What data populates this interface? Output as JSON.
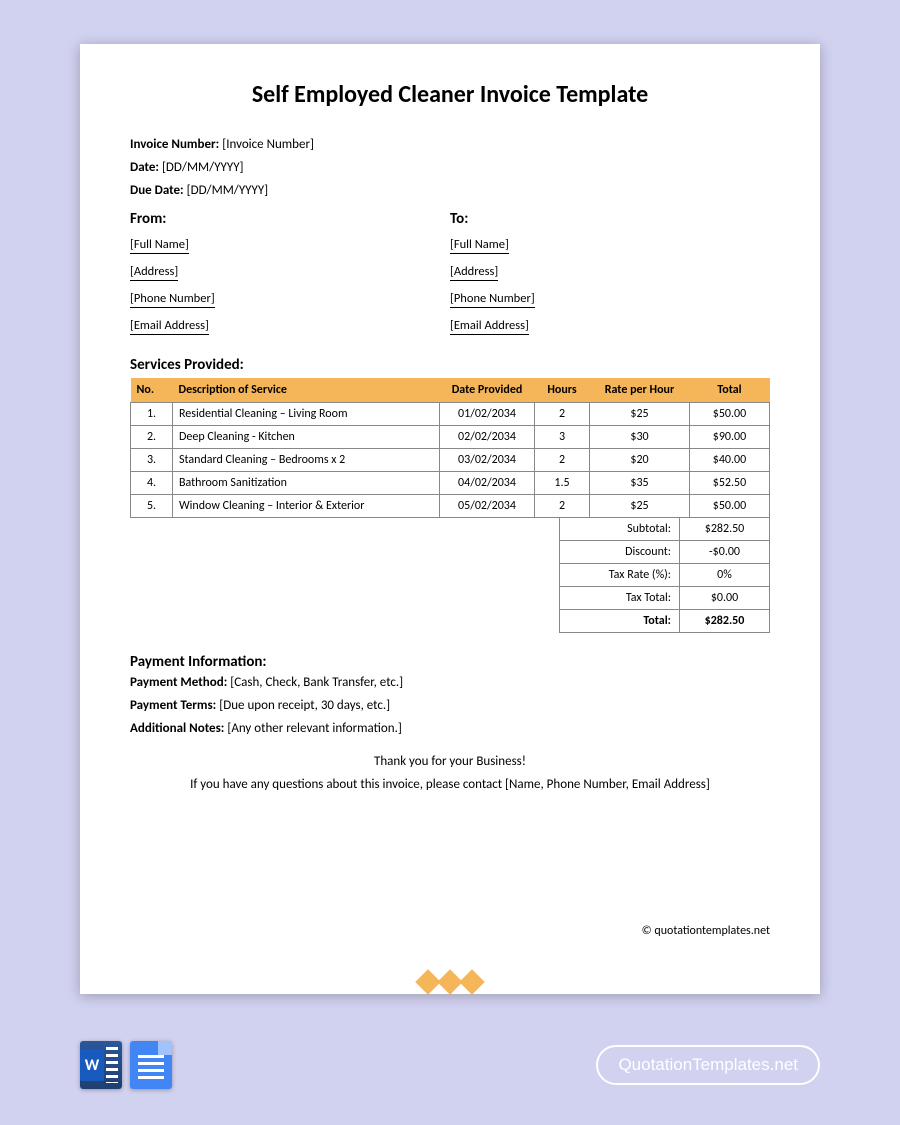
{
  "title": "Self Employed Cleaner Invoice Template",
  "meta": {
    "invoiceNumberLabel": "Invoice Number:",
    "invoiceNumberValue": "[Invoice Number]",
    "dateLabel": "Date:",
    "dateValue": "[DD/MM/YYYY]",
    "dueDateLabel": "Due Date:",
    "dueDateValue": "[DD/MM/YYYY]"
  },
  "from": {
    "heading": "From:",
    "name": "[Full Name]",
    "address": "[Address]",
    "phone": "[Phone Number]",
    "email": "[Email Address]"
  },
  "to": {
    "heading": "To:",
    "name": "[Full Name]",
    "address": "[Address]",
    "phone": "[Phone Number]",
    "email": "[Email Address]"
  },
  "servicesHeading": "Services Provided:",
  "columns": {
    "no": "No.",
    "desc": "Description of Service",
    "date": "Date Provided",
    "hours": "Hours",
    "rate": "Rate per Hour",
    "total": "Total"
  },
  "rows": [
    {
      "no": "1.",
      "desc": "Residential Cleaning – Living Room",
      "date": "01/02/2034",
      "hours": "2",
      "rate": "$25",
      "total": "$50.00"
    },
    {
      "no": "2.",
      "desc": "Deep Cleaning - Kitchen",
      "date": "02/02/2034",
      "hours": "3",
      "rate": "$30",
      "total": "$90.00"
    },
    {
      "no": "3.",
      "desc": "Standard Cleaning – Bedrooms x 2",
      "date": "03/02/2034",
      "hours": "2",
      "rate": "$20",
      "total": "$40.00"
    },
    {
      "no": "4.",
      "desc": "Bathroom Sanitization",
      "date": "04/02/2034",
      "hours": "1.5",
      "rate": "$35",
      "total": "$52.50"
    },
    {
      "no": "5.",
      "desc": "Window Cleaning – Interior & Exterior",
      "date": "05/02/2034",
      "hours": "2",
      "rate": "$25",
      "total": "$50.00"
    }
  ],
  "totals": {
    "subtotalLabel": "Subtotal:",
    "subtotalValue": "$282.50",
    "discountLabel": "Discount:",
    "discountValue": "-$0.00",
    "taxRateLabel": "Tax Rate (%):",
    "taxRateValue": "0%",
    "taxTotalLabel": "Tax Total:",
    "taxTotalValue": "$0.00",
    "totalLabel": "Total:",
    "totalValue": "$282.50"
  },
  "payment": {
    "heading": "Payment Information:",
    "methodLabel": "Payment Method:",
    "methodValue": "[Cash, Check, Bank Transfer, etc.]",
    "termsLabel": "Payment Terms:",
    "termsValue": "[Due upon receipt, 30 days, etc.]",
    "notesLabel": "Additional Notes:",
    "notesValue": "[Any other relevant information.]"
  },
  "thanks": "Thank you for your Business!",
  "contact": "If you have any questions about this invoice, please contact [Name, Phone Number, Email Address]",
  "copyright": "© quotationtemplates.net",
  "brand": "QuotationTemplates.net",
  "style": {
    "background": "#d1d1f0",
    "headerFill": "#f5b65a",
    "borderColor": "#888888",
    "pageBg": "#ffffff"
  }
}
